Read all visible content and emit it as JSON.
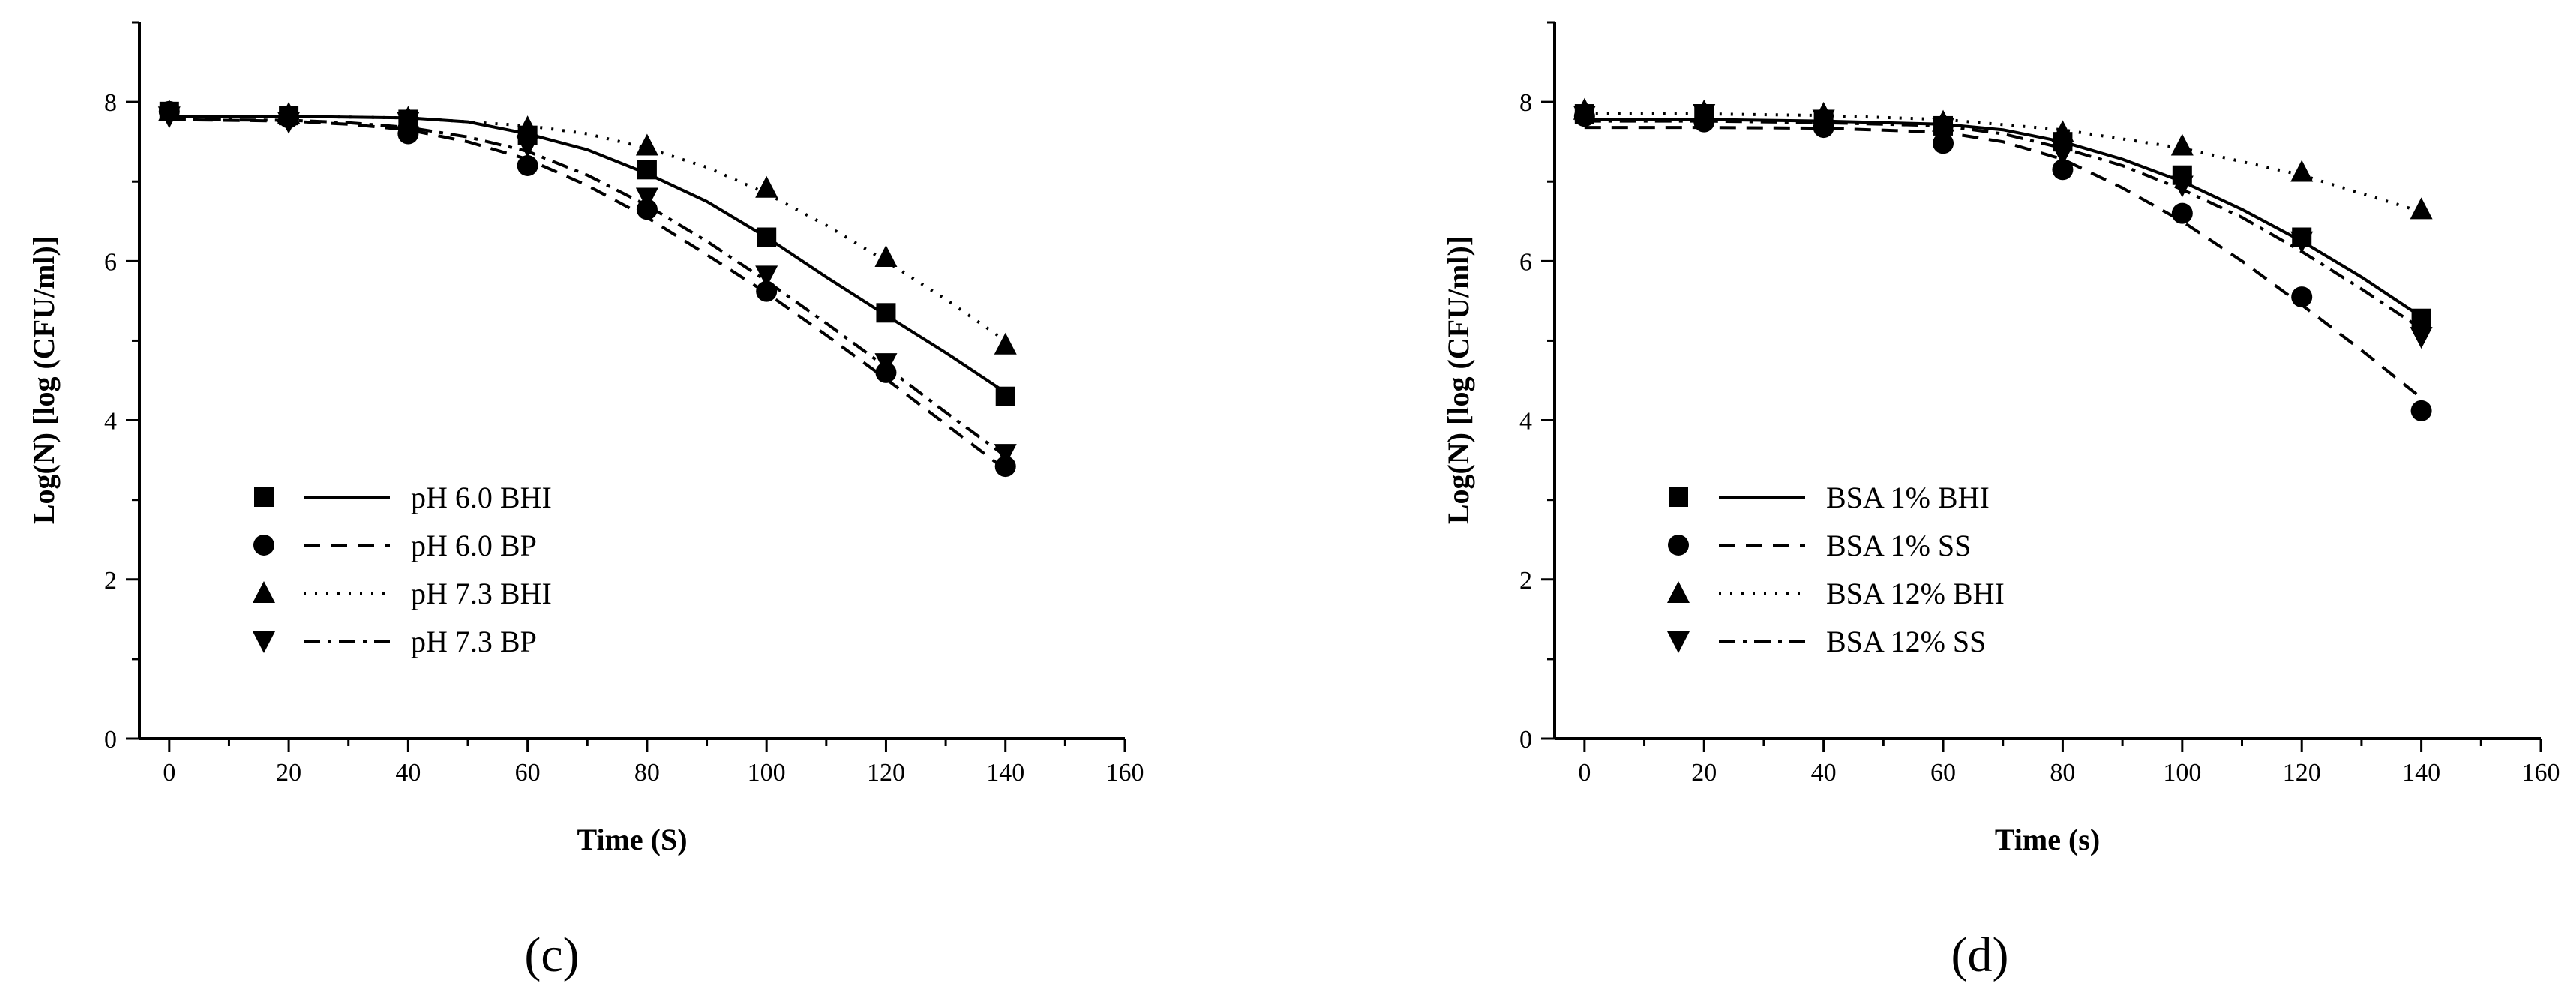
{
  "chart_data": [
    {
      "type": "scatter",
      "panel_label": "(c)",
      "xlabel": "Time (S)",
      "ylabel": "Log(N) [log (CFU/ml)]",
      "xlim": [
        -5,
        160
      ],
      "ylim": [
        0,
        9
      ],
      "xticks": [
        0,
        20,
        40,
        60,
        80,
        100,
        120,
        140,
        160
      ],
      "yticks": [
        0,
        2,
        4,
        6,
        8
      ],
      "xtick_labels": [
        "0",
        "20",
        "40",
        "60",
        "80",
        "100",
        "120",
        "140",
        "160"
      ],
      "ytick_labels": [
        "0",
        "2",
        "4",
        "6",
        "8"
      ],
      "legend_position": "bottom-left",
      "series": [
        {
          "name": "pH 6.0 BHI",
          "marker": "square",
          "line_style": "solid",
          "x": [
            0,
            20,
            40,
            60,
            80,
            100,
            120,
            140
          ],
          "y": [
            7.88,
            7.83,
            7.78,
            7.58,
            7.15,
            6.3,
            5.35,
            4.3
          ],
          "fit_x": [
            0,
            20,
            40,
            50,
            60,
            70,
            80,
            90,
            100,
            110,
            120,
            130,
            140
          ],
          "fit_y": [
            7.82,
            7.82,
            7.8,
            7.75,
            7.6,
            7.4,
            7.1,
            6.75,
            6.3,
            5.8,
            5.32,
            4.85,
            4.35
          ]
        },
        {
          "name": "pH 6.0 BP",
          "marker": "circle",
          "line_style": "dashed",
          "x": [
            0,
            20,
            40,
            60,
            80,
            100,
            120,
            140
          ],
          "y": [
            7.88,
            7.8,
            7.6,
            7.2,
            6.65,
            5.62,
            4.6,
            3.42
          ],
          "fit_x": [
            0,
            20,
            30,
            40,
            50,
            60,
            70,
            80,
            90,
            100,
            110,
            120,
            130,
            140
          ],
          "fit_y": [
            7.78,
            7.76,
            7.72,
            7.65,
            7.5,
            7.28,
            6.95,
            6.55,
            6.08,
            5.6,
            5.07,
            4.52,
            3.95,
            3.38
          ]
        },
        {
          "name": "pH 7.3 BHI",
          "marker": "triangle-up",
          "line_style": "dotted",
          "x": [
            0,
            20,
            40,
            60,
            80,
            100,
            120,
            140
          ],
          "y": [
            7.88,
            7.85,
            7.8,
            7.68,
            7.45,
            6.92,
            6.05,
            4.95
          ],
          "fit_x": [
            0,
            20,
            40,
            60,
            70,
            80,
            90,
            100,
            110,
            120,
            130,
            140
          ],
          "fit_y": [
            7.82,
            7.82,
            7.8,
            7.7,
            7.6,
            7.42,
            7.18,
            6.85,
            6.45,
            6.0,
            5.52,
            5.0
          ]
        },
        {
          "name": "pH 7.3 BP",
          "marker": "triangle-down",
          "line_style": "dash-dot",
          "x": [
            0,
            20,
            40,
            60,
            80,
            100,
            120,
            140
          ],
          "y": [
            7.82,
            7.75,
            7.75,
            7.45,
            6.8,
            5.82,
            4.72,
            3.58
          ],
          "fit_x": [
            0,
            20,
            30,
            40,
            50,
            60,
            70,
            80,
            90,
            100,
            110,
            120,
            130,
            140
          ],
          "fit_y": [
            7.78,
            7.77,
            7.74,
            7.68,
            7.56,
            7.38,
            7.08,
            6.7,
            6.25,
            5.75,
            5.22,
            4.67,
            4.1,
            3.55
          ]
        }
      ]
    },
    {
      "type": "scatter",
      "panel_label": "(d)",
      "xlabel": "Time (s)",
      "ylabel": "Log(N) [log (CFU/ml)]",
      "xlim": [
        -5,
        160
      ],
      "ylim": [
        0,
        9
      ],
      "xticks": [
        0,
        20,
        40,
        60,
        80,
        100,
        120,
        140,
        160
      ],
      "yticks": [
        0,
        2,
        4,
        6,
        8
      ],
      "xtick_labels": [
        "0",
        "20",
        "40",
        "60",
        "80",
        "100",
        "120",
        "140",
        "160"
      ],
      "ytick_labels": [
        "0",
        "2",
        "4",
        "6",
        "8"
      ],
      "legend_position": "bottom-left",
      "series": [
        {
          "name": "BSA 1% BHI",
          "marker": "square",
          "line_style": "solid",
          "x": [
            0,
            20,
            40,
            60,
            80,
            100,
            120,
            140
          ],
          "y": [
            7.85,
            7.82,
            7.78,
            7.7,
            7.5,
            7.08,
            6.3,
            5.28
          ],
          "fit_x": [
            0,
            20,
            40,
            60,
            70,
            80,
            90,
            100,
            110,
            120,
            130,
            140
          ],
          "fit_y": [
            7.78,
            7.78,
            7.76,
            7.72,
            7.65,
            7.5,
            7.28,
            7.0,
            6.65,
            6.25,
            5.8,
            5.3
          ]
        },
        {
          "name": "BSA 1% SS",
          "marker": "circle",
          "line_style": "dashed",
          "x": [
            0,
            20,
            40,
            60,
            80,
            100,
            120,
            140
          ],
          "y": [
            7.82,
            7.75,
            7.68,
            7.48,
            7.15,
            6.6,
            5.55,
            4.12
          ],
          "fit_x": [
            0,
            20,
            40,
            60,
            70,
            80,
            90,
            100,
            110,
            120,
            130,
            140
          ],
          "fit_y": [
            7.68,
            7.68,
            7.67,
            7.62,
            7.5,
            7.28,
            6.92,
            6.5,
            6.0,
            5.45,
            4.88,
            4.28
          ]
        },
        {
          "name": "BSA 12% BHI",
          "marker": "triangle-up",
          "line_style": "dotted",
          "x": [
            0,
            20,
            40,
            60,
            80,
            100,
            120,
            140
          ],
          "y": [
            7.9,
            7.88,
            7.85,
            7.75,
            7.62,
            7.45,
            7.12,
            6.65
          ],
          "fit_x": [
            0,
            20,
            40,
            60,
            80,
            100,
            120,
            140
          ],
          "fit_y": [
            7.85,
            7.85,
            7.83,
            7.78,
            7.65,
            7.42,
            7.08,
            6.62
          ]
        },
        {
          "name": "BSA 12%  SS",
          "marker": "triangle-down",
          "line_style": "dash-dot",
          "x": [
            0,
            20,
            40,
            60,
            80,
            100,
            120,
            140
          ],
          "y": [
            7.83,
            7.85,
            7.78,
            7.68,
            7.35,
            6.95,
            6.25,
            5.05
          ],
          "fit_x": [
            0,
            20,
            40,
            60,
            70,
            80,
            90,
            100,
            110,
            120,
            130,
            140
          ],
          "fit_y": [
            7.76,
            7.76,
            7.74,
            7.7,
            7.6,
            7.42,
            7.2,
            6.9,
            6.55,
            6.12,
            5.65,
            5.15
          ]
        }
      ]
    }
  ]
}
